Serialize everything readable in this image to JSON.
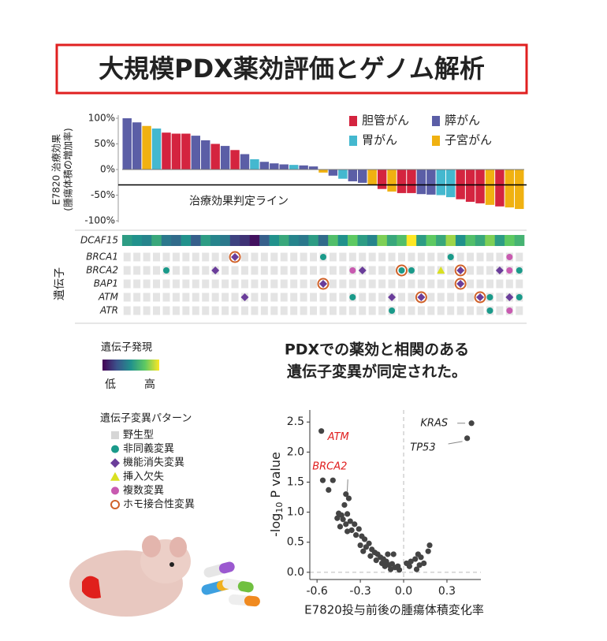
{
  "title": "大規模PDX薬効評価とゲノム解析",
  "finding": [
    "PDXでの薬効と相関のある",
    "遺伝子変異が同定された。"
  ],
  "chart_data": [
    {
      "type": "bar",
      "y_label": [
        "E7820 治療効果",
        "(腫瘍体積の増加率)"
      ],
      "ylim": [
        -100,
        100
      ],
      "yticks": [
        {
          "value": 100,
          "label": "100%"
        },
        {
          "value": 50,
          "label": "50%"
        },
        {
          "value": 0,
          "label": "0%"
        },
        {
          "value": -50,
          "label": "-50%"
        },
        {
          "value": -100,
          "label": "-100%"
        }
      ],
      "threshold": {
        "value": -30,
        "label": "治療効果判定ライン"
      },
      "series": [
        {
          "name": "胆管がん",
          "color": "#d4243f",
          "values": [
            null,
            null,
            null,
            null,
            72,
            70,
            70,
            null,
            null,
            50,
            null,
            38,
            null,
            null,
            null,
            null,
            null,
            null,
            null,
            null,
            null,
            null,
            null,
            null,
            null,
            null,
            -38,
            null,
            -46,
            -46,
            null,
            null,
            null,
            null,
            -58,
            -63,
            -66,
            null,
            -72,
            null,
            null
          ]
        },
        {
          "name": "膵がん",
          "color": "#5b5ea6",
          "values": [
            100,
            92,
            null,
            null,
            null,
            null,
            null,
            66,
            57,
            null,
            46,
            null,
            30,
            null,
            15,
            12,
            10,
            null,
            8,
            6,
            null,
            -12,
            null,
            -23,
            -26,
            null,
            null,
            null,
            null,
            null,
            -48,
            -49,
            null,
            null,
            null,
            null,
            null,
            null,
            null,
            null,
            null
          ]
        },
        {
          "name": "胃がん",
          "color": "#44b8cf",
          "values": [
            null,
            null,
            null,
            80,
            null,
            null,
            null,
            null,
            null,
            null,
            null,
            null,
            null,
            20,
            null,
            null,
            null,
            9,
            null,
            null,
            null,
            null,
            -18,
            null,
            null,
            null,
            null,
            null,
            null,
            null,
            null,
            null,
            -50,
            -54,
            null,
            null,
            null,
            null,
            null,
            null,
            null
          ]
        },
        {
          "name": "子宮がん",
          "color": "#f0b111",
          "values": [
            null,
            null,
            85,
            null,
            null,
            null,
            null,
            null,
            null,
            null,
            null,
            null,
            null,
            null,
            null,
            null,
            null,
            null,
            null,
            null,
            -6,
            null,
            null,
            null,
            null,
            -30,
            null,
            -43,
            null,
            null,
            null,
            null,
            null,
            null,
            null,
            null,
            null,
            -69,
            null,
            -74,
            -77
          ]
        }
      ]
    },
    {
      "type": "scatter",
      "x_label": "E7820投与前後の腫瘍体積変化率",
      "y_label": {
        "prefix": "-log",
        "sub": "10",
        "suffix": " P value"
      },
      "xlim": [
        -0.65,
        0.535
      ],
      "ylim": [
        -0.12,
        2.7
      ],
      "xticks": [
        -0.6,
        -0.3,
        {
          "value": 0,
          "label": "0.0"
        },
        0.3
      ],
      "yticks": [
        {
          "value": 0,
          "label": "0.0"
        },
        0.5,
        {
          "value": 1,
          "label": "1.0"
        },
        1.5,
        {
          "value": 2,
          "label": "2.0"
        },
        2.5
      ],
      "color": "#444444",
      "x": [
        -0.57,
        -0.56,
        -0.49,
        -0.52,
        -0.4,
        -0.38,
        -0.41,
        -0.45,
        -0.43,
        -0.39,
        -0.46,
        -0.42,
        -0.37,
        -0.4,
        -0.44,
        -0.34,
        -0.31,
        -0.36,
        -0.33,
        -0.29,
        -0.39,
        -0.27,
        -0.3,
        -0.26,
        -0.24,
        -0.22,
        -0.28,
        -0.2,
        -0.18,
        -0.23,
        -0.16,
        -0.19,
        -0.14,
        -0.12,
        -0.15,
        -0.1,
        -0.13,
        -0.08,
        -0.06,
        -0.09,
        -0.04,
        -0.03,
        -0.11,
        -0.07,
        0.02,
        0.05,
        0.04,
        0.08,
        0.1,
        0.12,
        0.14,
        0.17,
        0.18,
        0.11,
        0.09,
        0.44,
        0.47
      ],
      "values": [
        2.35,
        1.53,
        1.53,
        1.37,
        1.3,
        1.23,
        1.12,
        0.98,
        0.95,
        0.97,
        0.9,
        0.88,
        0.85,
        0.8,
        0.76,
        0.8,
        0.72,
        0.7,
        0.62,
        0.6,
        0.68,
        0.55,
        0.45,
        0.42,
        0.48,
        0.38,
        0.35,
        0.33,
        0.3,
        0.27,
        0.25,
        0.2,
        0.22,
        0.18,
        0.15,
        0.12,
        0.1,
        0.14,
        0.08,
        0.05,
        0.1,
        0.04,
        0.3,
        0.3,
        0.15,
        0.18,
        0.1,
        0.22,
        0.3,
        0.25,
        0.15,
        0.35,
        0.45,
        0.12,
        0.05,
        2.23,
        2.48
      ],
      "annotations": [
        {
          "point": 0,
          "text": "ATM",
          "color": "#e02020"
        },
        {
          "point": 5,
          "text": "BRCA2",
          "color": "#e02020"
        },
        {
          "point": 56,
          "text": "KRAS",
          "color": "#222222"
        },
        {
          "point": 55,
          "text": "TP53",
          "color": "#222222"
        }
      ]
    }
  ],
  "oncoprint": {
    "row_title": "遺伝子",
    "expression_gene": "DCAF15",
    "expression": [
      0.55,
      0.5,
      0.45,
      0.6,
      0.4,
      0.35,
      0.5,
      0.3,
      0.55,
      0.45,
      0.4,
      0.2,
      0.15,
      0.05,
      0.3,
      0.5,
      0.6,
      0.45,
      0.4,
      0.55,
      0.35,
      0.7,
      0.5,
      0.75,
      0.55,
      0.45,
      0.8,
      0.6,
      0.7,
      1.0,
      0.55,
      0.75,
      0.6,
      0.85,
      0.5,
      0.7,
      0.6,
      0.8,
      0.55,
      0.75,
      0.65
    ],
    "genes": [
      {
        "name": "BRCA1",
        "alterations": [
          {
            "col": 11,
            "type": 2,
            "homo": true
          },
          {
            "col": 20,
            "type": 1
          },
          {
            "col": 33,
            "type": 1
          },
          {
            "col": 39,
            "type": 4
          }
        ]
      },
      {
        "name": "BRCA2",
        "alterations": [
          {
            "col": 4,
            "type": 1
          },
          {
            "col": 9,
            "type": 2
          },
          {
            "col": 23,
            "type": 4
          },
          {
            "col": 24,
            "type": 2
          },
          {
            "col": 28,
            "type": 1,
            "homo": true
          },
          {
            "col": 29,
            "type": 1
          },
          {
            "col": 32,
            "type": 3
          },
          {
            "col": 34,
            "type": 2,
            "homo": true
          },
          {
            "col": 38,
            "type": 2
          },
          {
            "col": 39,
            "type": 4
          },
          {
            "col": 40,
            "type": 1
          }
        ]
      },
      {
        "name": "BAP1",
        "alterations": [
          {
            "col": 20,
            "type": 2,
            "homo": true
          },
          {
            "col": 34,
            "type": 2,
            "homo": true
          }
        ]
      },
      {
        "name": "ATM",
        "alterations": [
          {
            "col": 12,
            "type": 2
          },
          {
            "col": 23,
            "type": 1
          },
          {
            "col": 27,
            "type": 2
          },
          {
            "col": 30,
            "type": 2,
            "homo": true
          },
          {
            "col": 36,
            "type": 2,
            "homo": true
          },
          {
            "col": 37,
            "type": 1
          },
          {
            "col": 39,
            "type": 2
          },
          {
            "col": 40,
            "type": 1
          }
        ]
      },
      {
        "name": "ATR",
        "alterations": [
          {
            "col": 27,
            "type": 1
          },
          {
            "col": 37,
            "type": 1
          },
          {
            "col": 39,
            "type": 4
          }
        ]
      }
    ]
  },
  "expression_legend": {
    "title": "遺伝子発現",
    "low": "低",
    "high": "高"
  },
  "pattern_legend": {
    "title": "遺伝子変異パターン",
    "items": [
      "野生型",
      "非同義変異",
      "機能消失変異",
      "挿入欠失",
      "複数変異",
      "ホモ接合性変異"
    ]
  }
}
